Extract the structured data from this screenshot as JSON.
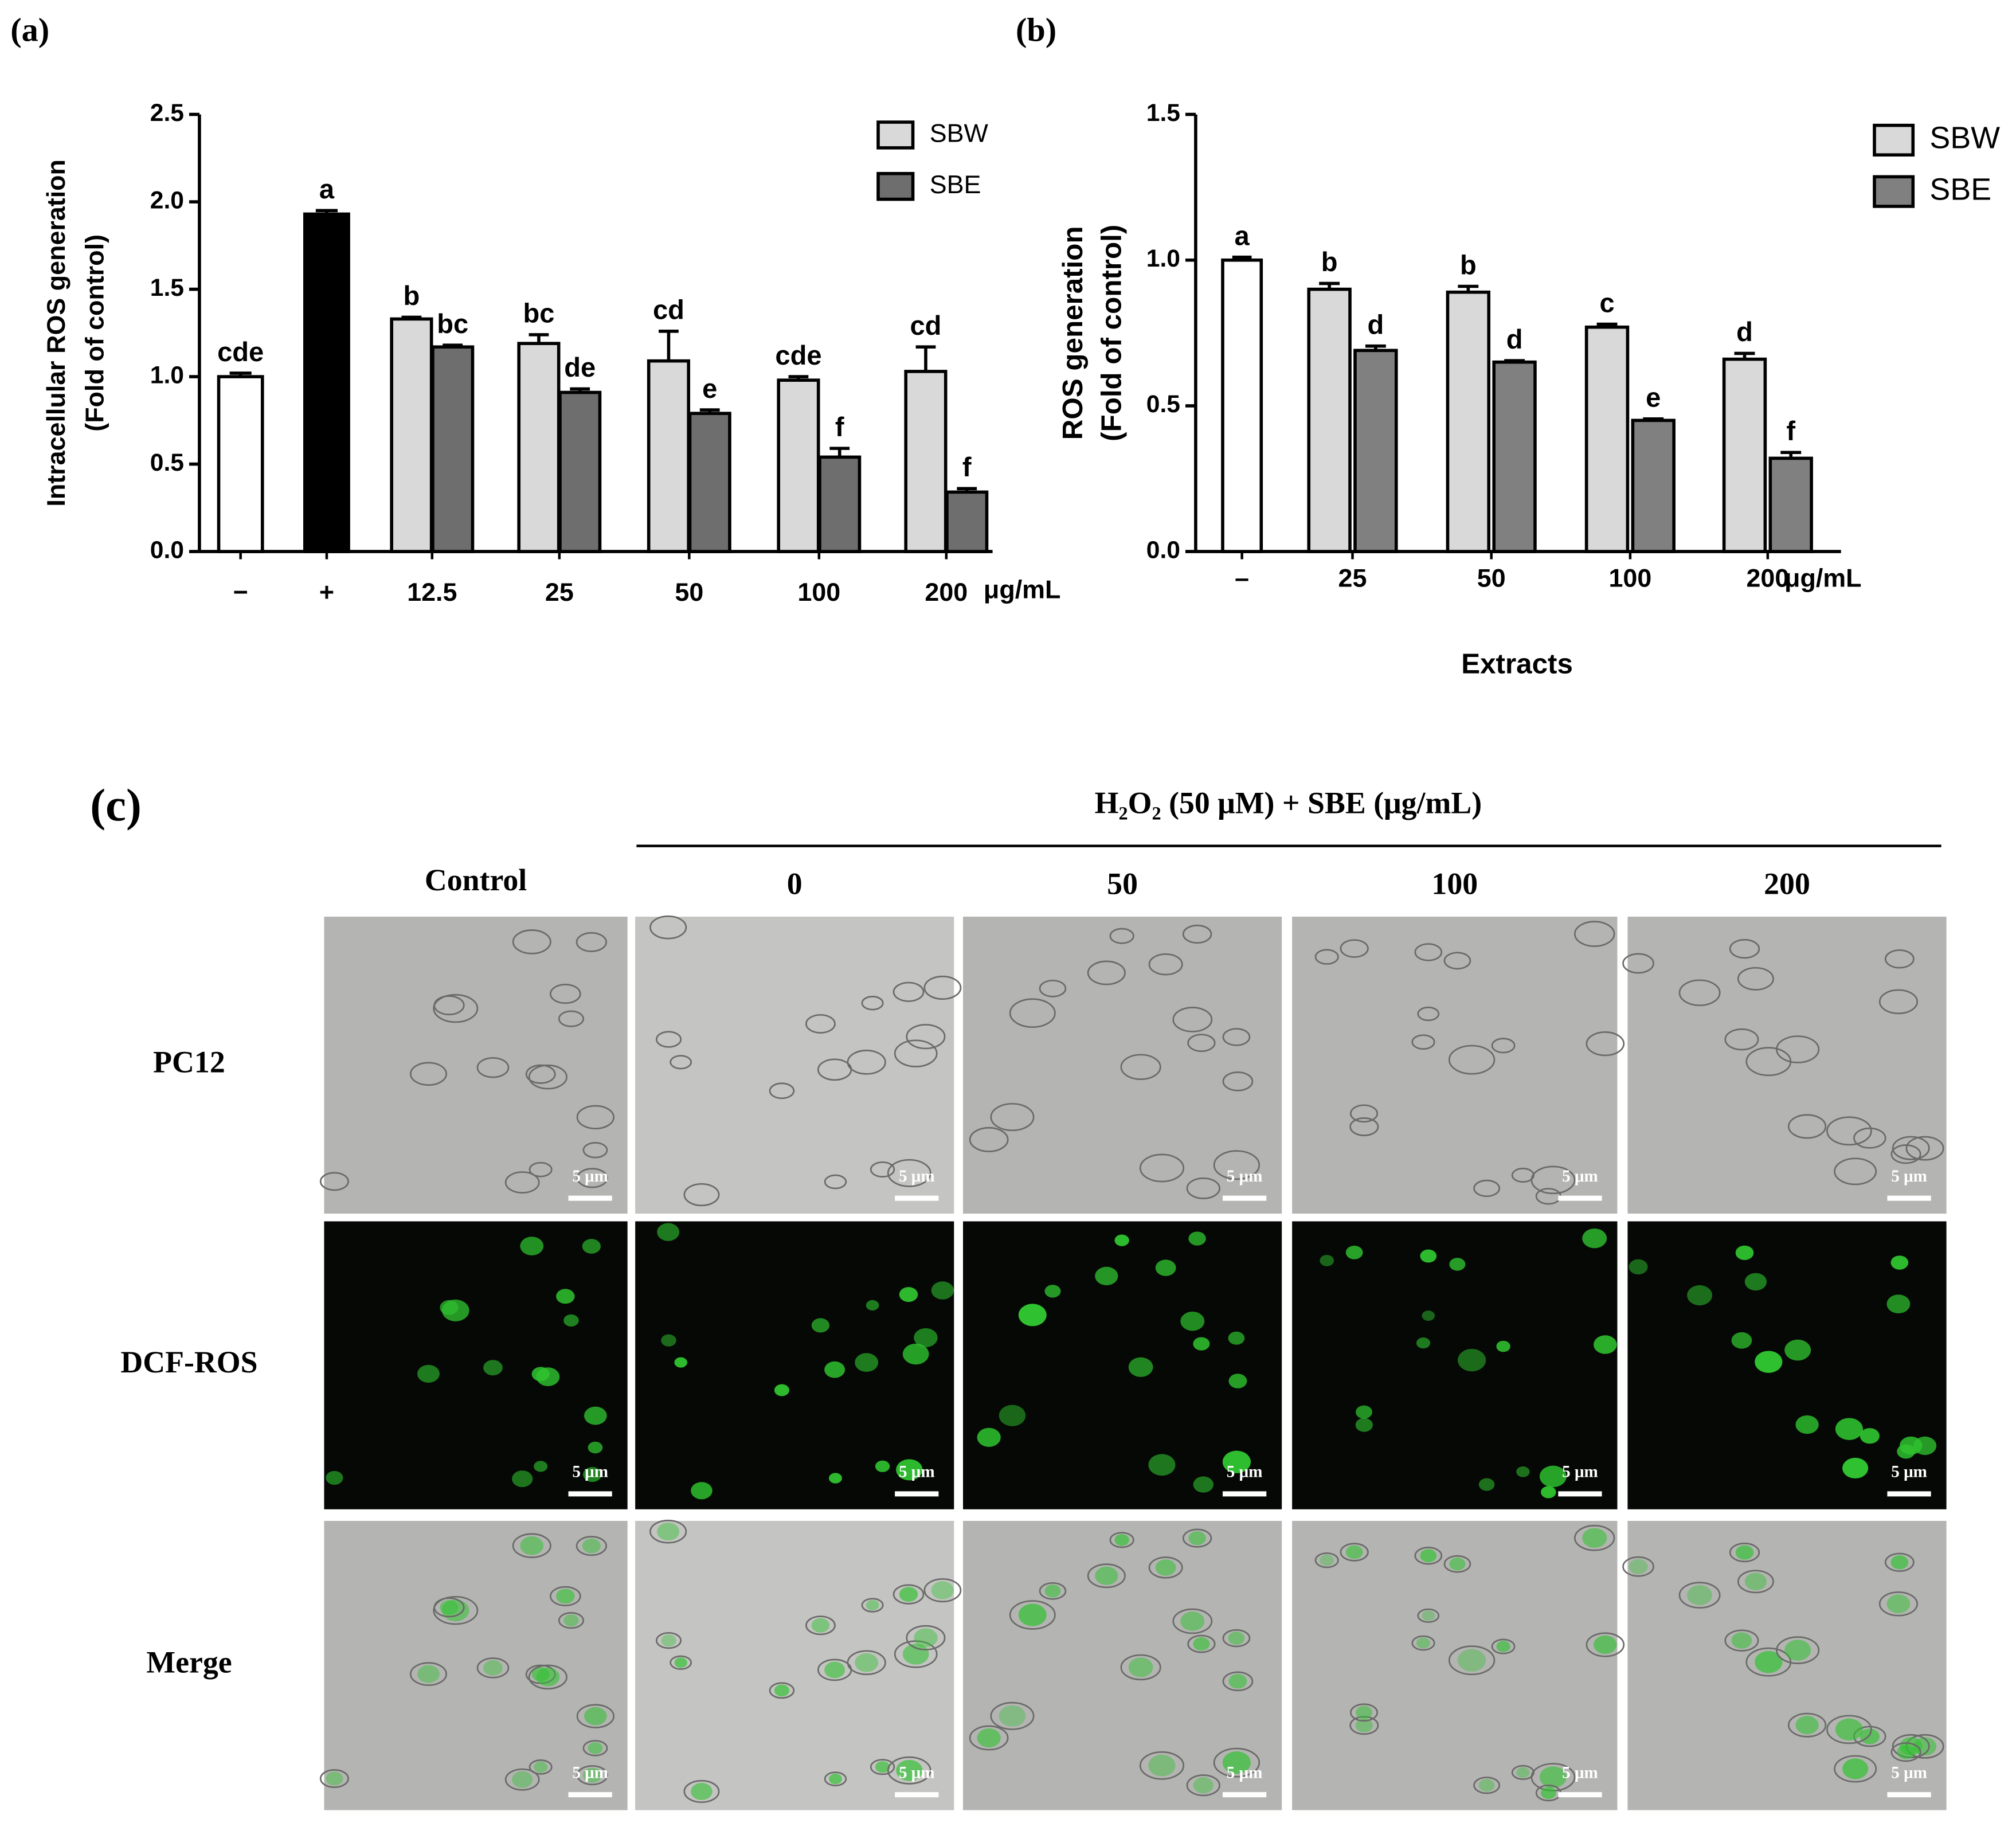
{
  "chart_data": [
    {
      "type": "bar",
      "panel_label": "(a)",
      "y_label": [
        "Intracellular ROS generation",
        "(Fold of control)"
      ],
      "categories": [
        "−",
        "+",
        "12.5",
        "25",
        "50",
        "100",
        "200"
      ],
      "unit_label": "μg/mL",
      "ylim": [
        0,
        2.5
      ],
      "yticks": [
        {
          "value": 0,
          "label": "0.0"
        },
        0.5,
        {
          "value": 1,
          "label": "1.0"
        },
        1.5,
        {
          "value": 2,
          "label": "2.0"
        },
        2.5
      ],
      "series": [
        {
          "colors": [
            "#ffffff",
            "#000000",
            null,
            null,
            null,
            null,
            null
          ],
          "values": [
            1.0,
            1.93,
            null,
            null,
            null,
            null,
            null
          ],
          "errors": [
            0.02,
            0.02,
            null,
            null,
            null,
            null,
            null
          ],
          "letters": [
            "cde",
            "a",
            null,
            null,
            null,
            null,
            null
          ]
        },
        {
          "name": "SBW",
          "color": "#d9d9d9",
          "values": [
            null,
            null,
            1.33,
            1.19,
            1.09,
            0.98,
            1.03
          ],
          "errors": [
            null,
            null,
            0.01,
            0.05,
            0.17,
            0.02,
            0.14
          ],
          "letters": [
            null,
            null,
            "b",
            "bc",
            "cd",
            "cde",
            "cd"
          ]
        },
        {
          "name": "SBE",
          "color": "#6e6e6e",
          "values": [
            null,
            null,
            1.17,
            0.91,
            0.79,
            0.54,
            0.34
          ],
          "errors": [
            null,
            null,
            0.01,
            0.02,
            0.02,
            0.05,
            0.02
          ],
          "letters": [
            null,
            null,
            "bc",
            "de",
            "e",
            "f",
            "f"
          ]
        }
      ]
    },
    {
      "type": "bar",
      "panel_label": "(b)",
      "y_label": [
        "ROS generation",
        "(Fold of control)"
      ],
      "x_label": "Extracts",
      "categories": [
        "–",
        "25",
        "50",
        "100",
        "200"
      ],
      "unit_label": "μg/mL",
      "ylim": [
        0,
        1.5
      ],
      "yticks": [
        {
          "value": 0,
          "label": "0.0"
        },
        0.5,
        {
          "value": 1,
          "label": "1.0"
        },
        1.5
      ],
      "series": [
        {
          "colors": [
            "#ffffff",
            null,
            null,
            null,
            null
          ],
          "values": [
            1.0,
            null,
            null,
            null,
            null
          ],
          "errors": [
            0.01,
            null,
            null,
            null,
            null
          ],
          "letters": [
            "a",
            null,
            null,
            null,
            null
          ]
        },
        {
          "name": "SBW",
          "color": "#d9d9d9",
          "values": [
            null,
            0.9,
            0.89,
            0.77,
            0.66
          ],
          "errors": [
            null,
            0.02,
            0.02,
            0.01,
            0.02
          ],
          "letters": [
            null,
            "b",
            "b",
            "c",
            "d"
          ]
        },
        {
          "name": "SBE",
          "color": "#808080",
          "values": [
            null,
            0.69,
            0.65,
            0.45,
            0.32
          ],
          "errors": [
            null,
            0.015,
            0.005,
            0.005,
            0.02
          ],
          "letters": [
            null,
            "d",
            "d",
            "e",
            "f"
          ]
        }
      ]
    }
  ],
  "panel_c": {
    "label": "(c)",
    "header": "H₂O₂ (50 μM) + SBE (μg/mL)",
    "columns": [
      "Control",
      "0",
      "50",
      "100",
      "200"
    ],
    "rows": [
      "PC12",
      "DCF-ROS",
      "Merge"
    ],
    "scale_bar": "5 μm"
  }
}
